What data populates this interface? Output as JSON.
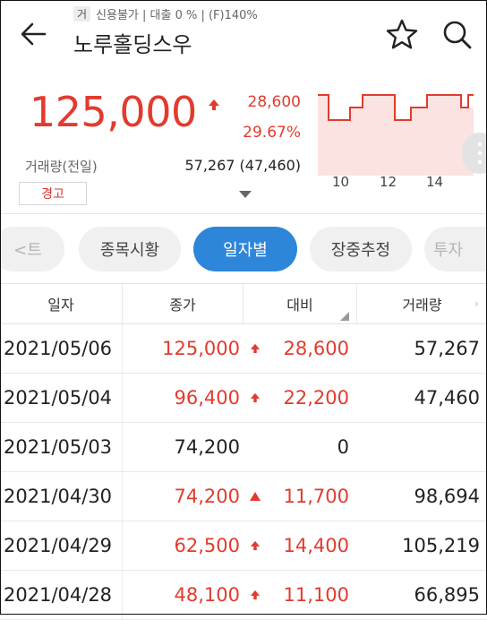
{
  "header": {
    "badge": "거",
    "tags": "신용불가 | 대출 0 % | (F)140%",
    "stock_name": "노루홀딩스우"
  },
  "quote": {
    "price": "125,000",
    "change": "28,600",
    "change_pct": "29.67%",
    "volume_label": "거래량(전일)",
    "volume_value": "57,267 (47,460)",
    "warning_label": "경고"
  },
  "sparkline": {
    "ticks": [
      "10",
      "12",
      "14"
    ],
    "line_color": "#e23b2e"
  },
  "tabs": [
    {
      "label": "<트",
      "active": false
    },
    {
      "label": "종목시황",
      "active": false
    },
    {
      "label": "일자별",
      "active": true
    },
    {
      "label": "장중추정",
      "active": false
    },
    {
      "label": "투자",
      "active": false
    }
  ],
  "table": {
    "headers": [
      "일자",
      "종가",
      "대비",
      "거래량"
    ],
    "rows": [
      {
        "date": "2021/05/06",
        "close": "125,000",
        "arrow": "up",
        "diff": "28,600",
        "volume": "57,267",
        "color": "red"
      },
      {
        "date": "2021/05/04",
        "close": "96,400",
        "arrow": "up",
        "diff": "22,200",
        "volume": "47,460",
        "color": "red"
      },
      {
        "date": "2021/05/03",
        "close": "74,200",
        "arrow": "",
        "diff": "0",
        "volume": "",
        "color": "dark"
      },
      {
        "date": "2021/04/30",
        "close": "74,200",
        "arrow": "triangle",
        "diff": "11,700",
        "volume": "98,694",
        "color": "red"
      },
      {
        "date": "2021/04/29",
        "close": "62,500",
        "arrow": "up",
        "diff": "14,400",
        "volume": "105,219",
        "color": "red"
      },
      {
        "date": "2021/04/28",
        "close": "48,100",
        "arrow": "up",
        "diff": "11,100",
        "volume": "66,895",
        "color": "red"
      }
    ]
  },
  "colors": {
    "up": "#e23b2e",
    "accent": "#2d86d9"
  }
}
